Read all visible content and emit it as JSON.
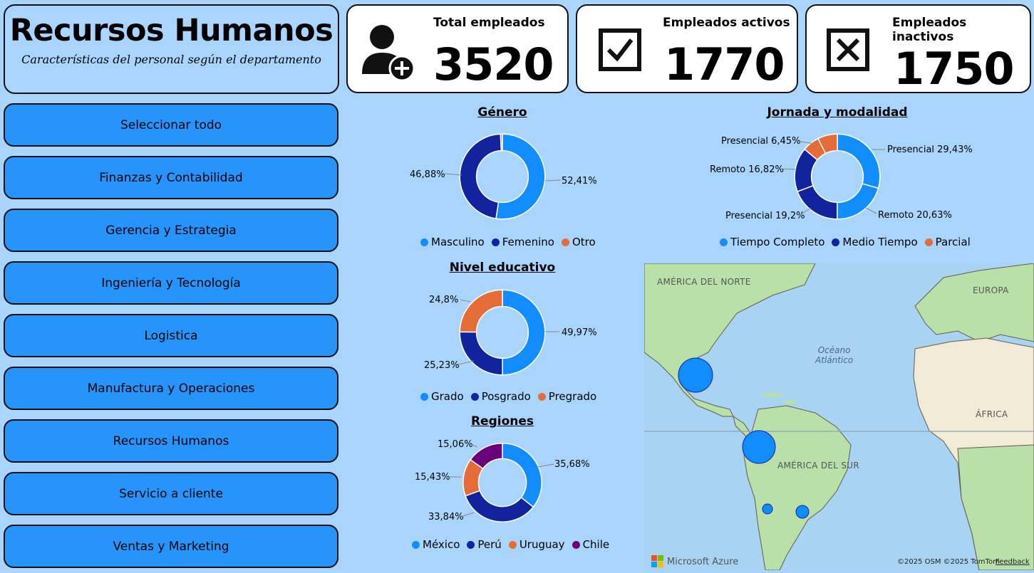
{
  "header": {
    "title": "Recursos Humanos",
    "subtitle": "Características del personal según el departamento"
  },
  "kpis": [
    {
      "label": "Total empleados",
      "value": "3520",
      "icon": "add-user-icon"
    },
    {
      "label": "Empleados activos",
      "value": "1770",
      "icon": "checkbox-checked-icon"
    },
    {
      "label": "Empleados inactivos",
      "value": "1750",
      "icon": "checkbox-x-icon"
    }
  ],
  "departments": [
    "Seleccionar todo",
    "Finanzas y Contabilidad",
    "Gerencia y Estrategia",
    "Ingeniería y Tecnología",
    "Logistica",
    "Manufactura y Operaciones",
    "Recursos Humanos",
    "Servicio a cliente",
    "Ventas y Marketing"
  ],
  "colors": {
    "blue": "#118dff",
    "navy": "#12239e",
    "orange": "#e66c37",
    "purple": "#6b007b",
    "button": "#2794fb",
    "background": "#a9d5fc"
  },
  "chart_data": [
    {
      "type": "pie",
      "title": "Género",
      "categories": [
        "Masculino",
        "Femenino",
        "Otro"
      ],
      "values": [
        52.41,
        46.88,
        0.71
      ],
      "labels": [
        "52,41%",
        "46,88%"
      ],
      "colors": [
        "#118dff",
        "#12239e",
        "#e66c37"
      ]
    },
    {
      "type": "pie",
      "title": "Jornada y modalidad",
      "categories": [
        "Tiempo Completo",
        "Medio Tiempo",
        "Parcial"
      ],
      "segments": [
        {
          "name": "Presencial",
          "group": "Tiempo Completo",
          "value": 29.43,
          "label": "Presencial 29,43%"
        },
        {
          "name": "Remoto",
          "group": "Tiempo Completo",
          "value": 20.63,
          "label": "Remoto 20,63%"
        },
        {
          "name": "Presencial",
          "group": "Medio Tiempo",
          "value": 19.2,
          "label": "Presencial 19,2%"
        },
        {
          "name": "Remoto",
          "group": "Medio Tiempo",
          "value": 16.82,
          "label": "Remoto 16,82%"
        },
        {
          "name": "Presencial",
          "group": "Parcial",
          "value": 6.45,
          "label": "Presencial 6,45%"
        },
        {
          "name": "Remoto",
          "group": "Parcial",
          "value": 7.47,
          "label": ""
        }
      ],
      "colors": [
        "#118dff",
        "#12239e",
        "#e66c37"
      ]
    },
    {
      "type": "pie",
      "title": "Nivel educativo",
      "categories": [
        "Grado",
        "Posgrado",
        "Pregrado"
      ],
      "values": [
        49.97,
        25.23,
        24.8
      ],
      "labels": [
        "49,97%",
        "25,23%",
        "24,8%"
      ],
      "colors": [
        "#118dff",
        "#12239e",
        "#e66c37"
      ]
    },
    {
      "type": "pie",
      "title": "Regiones",
      "categories": [
        "México",
        "Perú",
        "Uruguay",
        "Chile"
      ],
      "values": [
        35.68,
        33.84,
        15.43,
        15.06
      ],
      "labels": [
        "35,68%",
        "33,84%",
        "15,43%",
        "15,06%"
      ],
      "colors": [
        "#118dff",
        "#12239e",
        "#e66c37",
        "#6b007b"
      ]
    }
  ],
  "map": {
    "labels": [
      "AMÉRICA DEL NORTE",
      "EUROPA",
      "ÁFRICA",
      "AMÉRICA DEL SUR"
    ],
    "ocean": "Océano\nAtlántico",
    "brand": "Microsoft Azure",
    "credits": "©2025 OSM  ©2025 TomTom",
    "feedback": "Feedback"
  }
}
